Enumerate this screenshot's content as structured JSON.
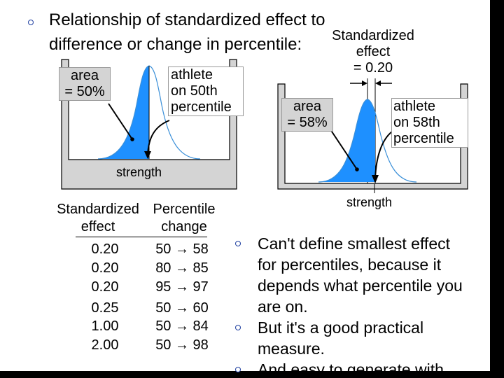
{
  "title": {
    "line1": "Relationship of standardized effect to",
    "line2": "difference or change in percentile:"
  },
  "left_figure": {
    "area_label": [
      "area",
      "= 50%"
    ],
    "athlete_label": [
      "athlete",
      "on 50th",
      "percentile"
    ],
    "axis_label": "strength"
  },
  "right_figure": {
    "effect_label": [
      "Standardized",
      "effect",
      "= 0.20"
    ],
    "area_label": [
      "area",
      "= 58%"
    ],
    "athlete_label": [
      "athlete",
      "on 58th",
      "percentile"
    ],
    "axis_label": "strength"
  },
  "table": {
    "headers": [
      [
        "Standardized",
        "effect"
      ],
      [
        "Percentile",
        "change"
      ]
    ],
    "rows": [
      [
        "0.20",
        "50 → 58"
      ],
      [
        "0.20",
        "80 → 85"
      ],
      [
        "0.20",
        "95 → 97"
      ],
      [
        "0.25",
        "50 → 60"
      ],
      [
        "1.00",
        "50 → 84"
      ],
      [
        "2.00",
        "50 → 98"
      ]
    ]
  },
  "bullets": [
    {
      "lines": [
        "Can't define smallest effect",
        "for percentiles, because it",
        "depends what percentile you",
        "are on."
      ]
    },
    {
      "lines": [
        "But it's a good practical",
        "measure."
      ]
    },
    {
      "lines": [
        "And easy to generate with"
      ]
    }
  ],
  "colors": {
    "fill": "#1e90ff",
    "curve": "#3a8fd8",
    "panel": "#d4d4d4",
    "bullet": "#1f3fa0"
  }
}
